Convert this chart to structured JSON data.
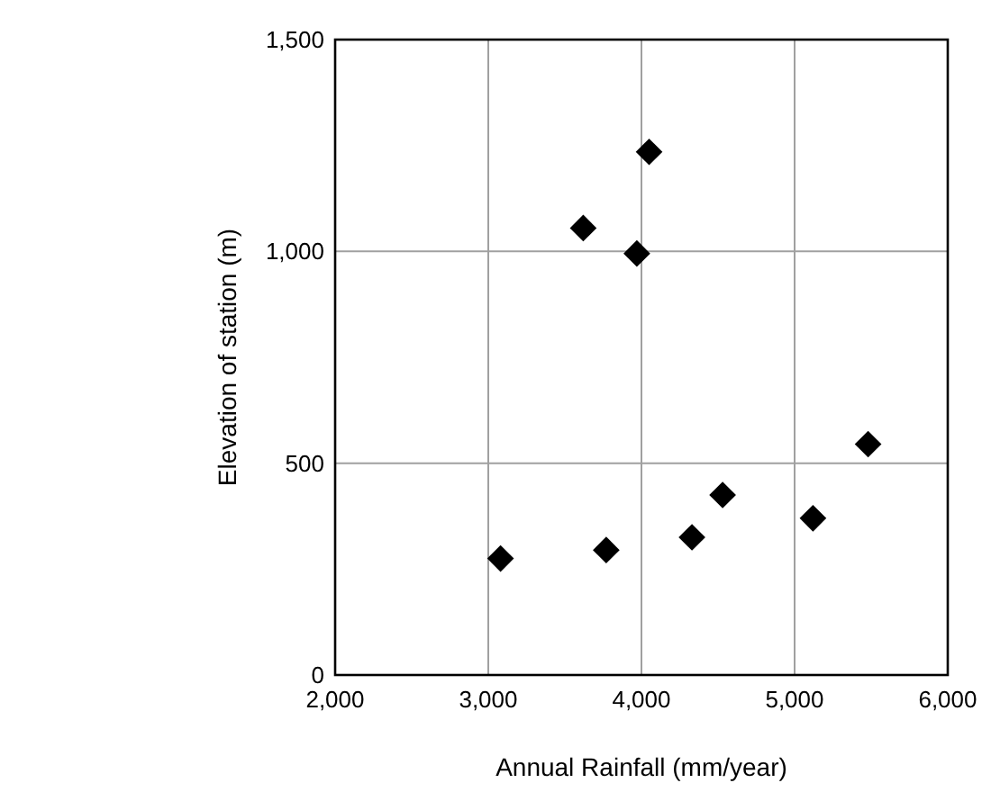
{
  "chart_data": {
    "type": "scatter",
    "xlabel": "Annual Rainfall (mm/year)",
    "ylabel": "Elevation of station (m)",
    "x": [
      3080,
      3620,
      3770,
      3970,
      4050,
      4330,
      4530,
      5120,
      5480
    ],
    "values": [
      275,
      1055,
      295,
      995,
      1235,
      325,
      425,
      370,
      545
    ],
    "color": "#000000",
    "marker": "diamond",
    "xlim": [
      2000,
      6000
    ],
    "xticks": [
      {
        "value": 2000,
        "label": "2,000"
      },
      {
        "value": 3000,
        "label": "3,000"
      },
      {
        "value": 4000,
        "label": "4,000"
      },
      {
        "value": 5000,
        "label": "5,000"
      },
      {
        "value": 6000,
        "label": "6,000"
      }
    ],
    "ylim": [
      0,
      1500
    ],
    "yticks": [
      0,
      500,
      {
        "value": 1000,
        "label": "1,000"
      },
      {
        "value": 1500,
        "label": "1,500"
      }
    ],
    "grid": true
  }
}
